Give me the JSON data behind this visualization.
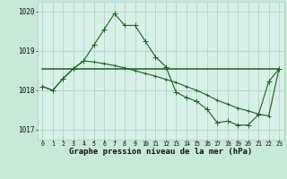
{
  "xlabel": "Graphe pression niveau de la mer (hPa)",
  "background_color": "#c8e8d8",
  "plot_bg_color": "#d8f0e8",
  "grid_color": "#a8cfc0",
  "line_color": "#1a6020",
  "hours": [
    0,
    1,
    2,
    3,
    4,
    5,
    6,
    7,
    8,
    9,
    10,
    11,
    12,
    13,
    14,
    15,
    16,
    17,
    18,
    19,
    20,
    21,
    22,
    23
  ],
  "series_main": [
    1018.1,
    1018.0,
    1018.3,
    1018.55,
    1018.75,
    1019.15,
    1019.55,
    1019.95,
    1019.65,
    1019.65,
    1019.25,
    1018.85,
    1018.6,
    1017.95,
    1017.82,
    1017.72,
    1017.52,
    1017.18,
    1017.22,
    1017.12,
    1017.12,
    1017.38,
    1018.22,
    1018.55
  ],
  "series_slope": [
    1018.1,
    1018.0,
    1018.3,
    1018.55,
    1018.75,
    1018.72,
    1018.68,
    1018.63,
    1018.57,
    1018.5,
    1018.43,
    1018.36,
    1018.28,
    1018.2,
    1018.1,
    1018.0,
    1017.88,
    1017.75,
    1017.65,
    1017.55,
    1017.48,
    1017.4,
    1017.35,
    1018.55
  ],
  "series_flat": [
    1018.55,
    1018.55,
    1018.55,
    1018.55,
    1018.55,
    1018.55,
    1018.55,
    1018.55,
    1018.55,
    1018.55,
    1018.55,
    1018.55,
    1018.55,
    1018.55,
    1018.55,
    1018.55,
    1018.55,
    1018.55,
    1018.55,
    1018.55,
    1018.55,
    1018.55,
    1018.55,
    1018.55
  ],
  "ylim": [
    1016.75,
    1020.25
  ],
  "yticks": [
    1017,
    1018,
    1019,
    1020
  ],
  "xtick_fontsize": 4.8,
  "ytick_fontsize": 5.5,
  "xlabel_fontsize": 6.5,
  "marker_size": 2.5,
  "line_width": 0.8
}
